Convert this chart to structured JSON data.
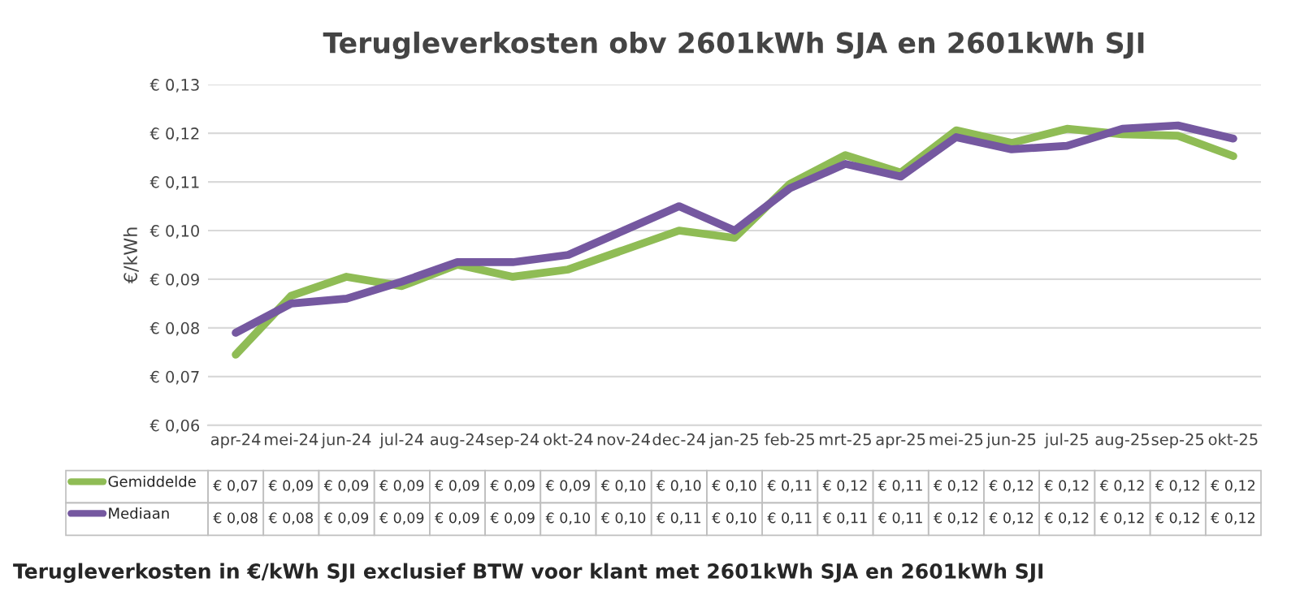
{
  "chart_data": {
    "type": "line",
    "title": "Terugleverkosten obv 2601kWh SJA en 2601kWh SJI",
    "ylabel": "€/kWh",
    "categories": [
      "apr-24",
      "mei-24",
      "jun-24",
      "jul-24",
      "aug-24",
      "sep-24",
      "okt-24",
      "nov-24",
      "dec-24",
      "jan-25",
      "feb-25",
      "mrt-25",
      "apr-25",
      "mei-25",
      "jun-25",
      "jul-25",
      "aug-25",
      "sep-25",
      "okt-25"
    ],
    "series": [
      {
        "name": "Gemiddelde",
        "color": "#8fbc55",
        "values": [
          0.0745,
          0.0866,
          0.0905,
          0.0886,
          0.093,
          0.0905,
          0.092,
          0.096,
          0.1,
          0.0985,
          0.1096,
          0.1155,
          0.1119,
          0.1206,
          0.118,
          0.1209,
          0.1198,
          0.1195,
          0.1153
        ],
        "value_labels": [
          "€ 0,07",
          "€ 0,09",
          "€ 0,09",
          "€ 0,09",
          "€ 0,09",
          "€ 0,09",
          "€ 0,09",
          "€ 0,10",
          "€ 0,10",
          "€ 0,10",
          "€ 0,11",
          "€ 0,12",
          "€ 0,11",
          "€ 0,12",
          "€ 0,12",
          "€ 0,12",
          "€ 0,12",
          "€ 0,12",
          "€ 0,12"
        ]
      },
      {
        "name": "Mediaan",
        "color": "#7558a0",
        "values": [
          0.079,
          0.085,
          0.086,
          0.0895,
          0.0935,
          0.0935,
          0.095,
          0.1,
          0.105,
          0.1,
          0.1087,
          0.1137,
          0.1111,
          0.1192,
          0.1167,
          0.1174,
          0.1209,
          0.1216,
          0.1189
        ],
        "value_labels": [
          "€ 0,08",
          "€ 0,08",
          "€ 0,09",
          "€ 0,09",
          "€ 0,09",
          "€ 0,09",
          "€ 0,10",
          "€ 0,10",
          "€ 0,11",
          "€ 0,10",
          "€ 0,11",
          "€ 0,11",
          "€ 0,11",
          "€ 0,12",
          "€ 0,12",
          "€ 0,12",
          "€ 0,12",
          "€ 0,12",
          "€ 0,12"
        ]
      }
    ],
    "ylim": [
      0.06,
      0.13
    ],
    "yticks": [
      {
        "value": 0.06,
        "label": "€ 0,06"
      },
      {
        "value": 0.07,
        "label": "€ 0,07"
      },
      {
        "value": 0.08,
        "label": "€ 0,08"
      },
      {
        "value": 0.09,
        "label": "€ 0,09"
      },
      {
        "value": 0.1,
        "label": "€ 0,10"
      },
      {
        "value": 0.11,
        "label": "€ 0,11"
      },
      {
        "value": 0.12,
        "label": "€ 0,12"
      },
      {
        "value": 0.13,
        "label": "€ 0,13"
      }
    ],
    "grid": "y",
    "legend": "bottom left",
    "annotations": [
      "Terugleverkosten in €/kWh SJI exclusief BTW voor klant met 2601kWh SJA en 2601kWh SJI"
    ]
  }
}
